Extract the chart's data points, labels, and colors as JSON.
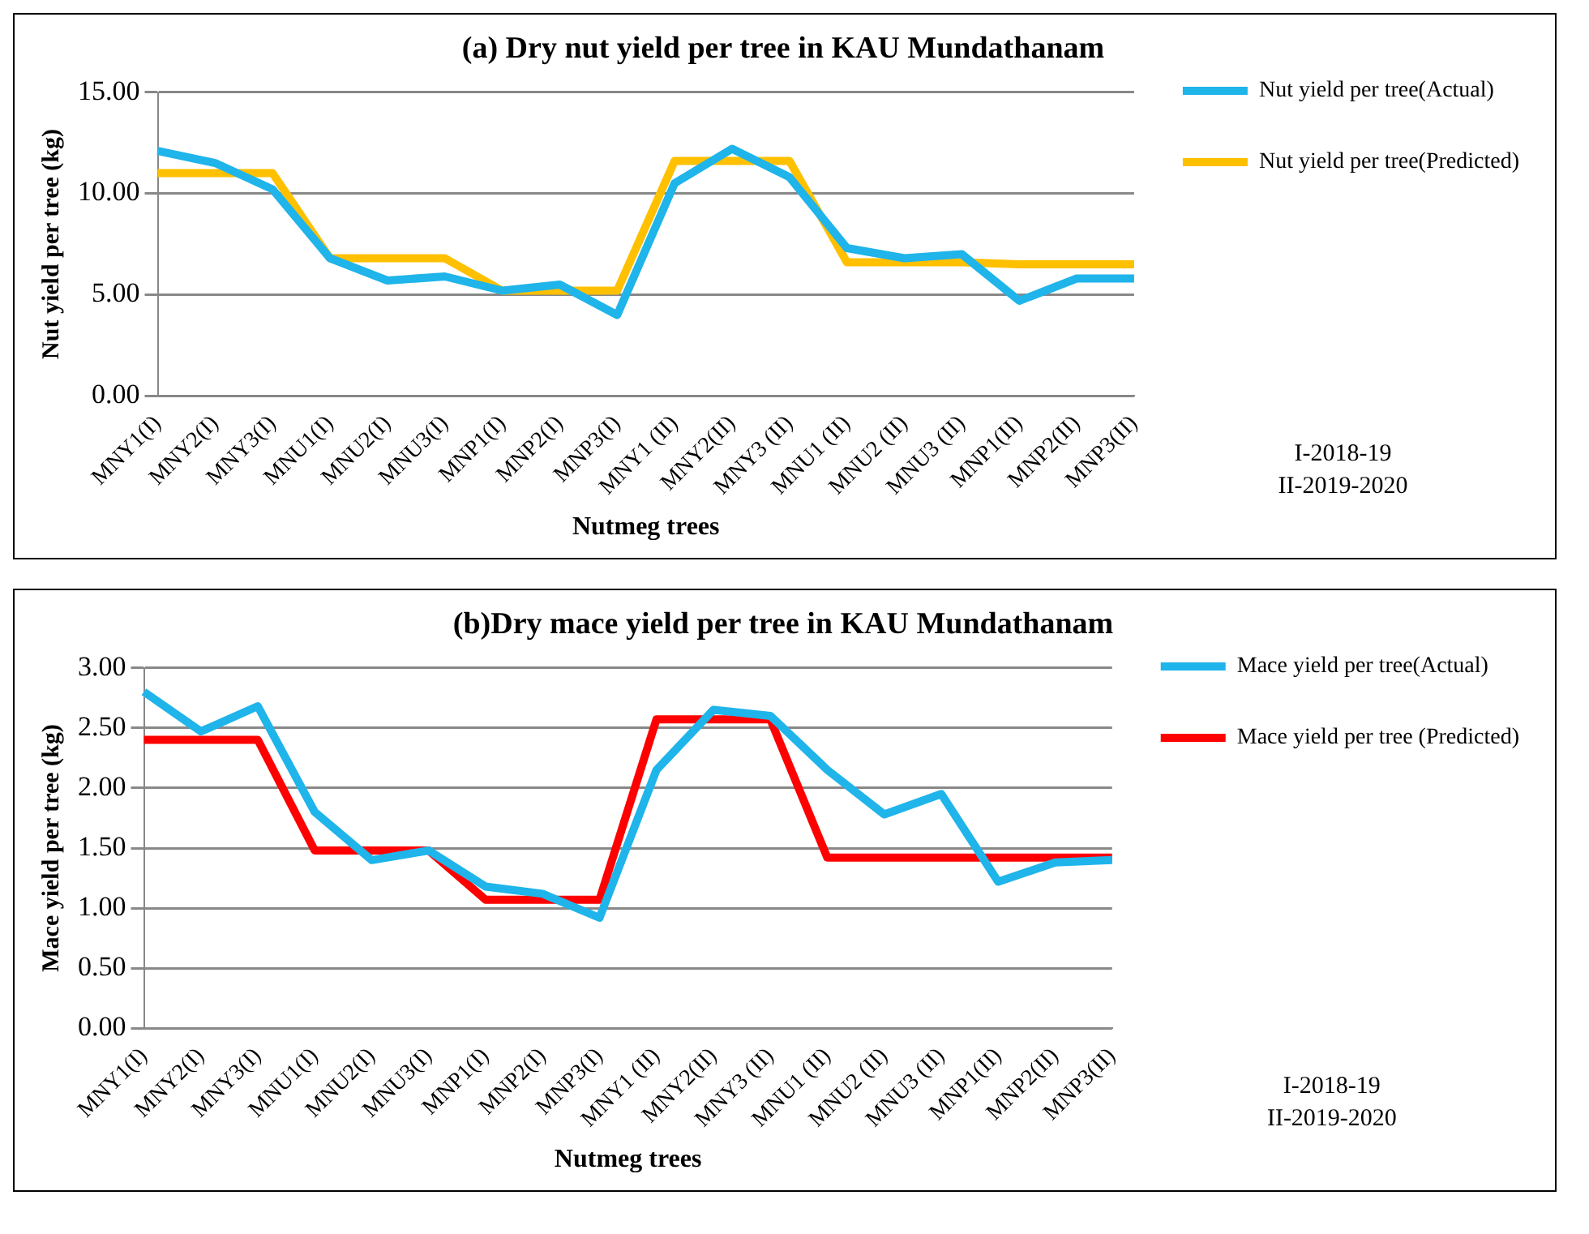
{
  "chart_data": [
    {
      "type": "line",
      "title": "(a) Dry nut yield per tree in KAU Mundathanam",
      "xlabel": "Nutmeg trees",
      "ylabel": "Nut yield per tree (kg)",
      "categories": [
        "MNY1(I)",
        "MNY2(I)",
        "MNY3(I)",
        "MNU1(I)",
        "MNU2(I)",
        "MNU3(I)",
        "MNP1(I)",
        "MNP2(I)",
        "MNP3(I)",
        "MNY1 (II)",
        "MNY2(II)",
        "MNY3 (II)",
        "MNU1 (II)",
        "MNU2 (II)",
        "MNU3 (II)",
        "MNP1(II)",
        "MNP2(II)",
        "MNP3(II)"
      ],
      "series": [
        {
          "name": "Nut yield per tree(Actual)",
          "color": "#1fb4ea",
          "values": [
            12.1,
            11.5,
            10.2,
            6.8,
            5.7,
            5.9,
            5.2,
            5.5,
            4.0,
            10.5,
            12.2,
            10.8,
            7.3,
            6.8,
            7.0,
            4.7,
            5.8,
            5.8
          ]
        },
        {
          "name": "Nut yield per tree(Predicted)",
          "color": "#ffc000",
          "values": [
            11.0,
            11.0,
            11.0,
            6.8,
            6.8,
            6.8,
            5.2,
            5.2,
            5.2,
            11.6,
            11.6,
            11.6,
            6.6,
            6.6,
            6.6,
            6.5,
            6.5,
            6.5
          ]
        }
      ],
      "ylim": [
        0,
        15
      ],
      "yticks": [
        {
          "value": 0,
          "label": "0.00"
        },
        {
          "value": 5,
          "label": "5.00"
        },
        {
          "value": 10,
          "label": "10.00"
        },
        {
          "value": 15,
          "label": "15.00"
        }
      ],
      "grid": "y",
      "legend": "right",
      "marker": "none",
      "annotations": [
        "I-2018-19",
        "II-2019-2020"
      ]
    },
    {
      "type": "line",
      "title": "(b)Dry mace yield per tree in KAU Mundathanam",
      "xlabel": "Nutmeg trees",
      "ylabel": "Mace yield per tree (kg)",
      "categories": [
        "MNY1(I)",
        "MNY2(I)",
        "MNY3(I)",
        "MNU1(I)",
        "MNU2(I)",
        "MNU3(I)",
        "MNP1(I)",
        "MNP2(I)",
        "MNP3(I)",
        "MNY1 (II)",
        "MNY2(II)",
        "MNY3 (II)",
        "MNU1 (II)",
        "MNU2 (II)",
        "MNU3 (II)",
        "MNP1(II)",
        "MNP2(II)",
        "MNP3(II)"
      ],
      "series": [
        {
          "name": "Mace yield per tree(Actual)",
          "color": "#1fb4ea",
          "values": [
            2.8,
            2.47,
            2.68,
            1.8,
            1.4,
            1.48,
            1.18,
            1.12,
            0.92,
            2.15,
            2.65,
            2.6,
            2.15,
            1.78,
            1.95,
            1.22,
            1.38,
            1.4
          ]
        },
        {
          "name": "Mace yield per tree (Predicted)",
          "color": "#ff0000",
          "values": [
            2.4,
            2.4,
            2.4,
            1.48,
            1.48,
            1.48,
            1.07,
            1.07,
            1.07,
            2.57,
            2.57,
            2.57,
            1.42,
            1.42,
            1.42,
            1.42,
            1.42,
            1.42
          ]
        }
      ],
      "ylim": [
        0,
        3
      ],
      "yticks": [
        {
          "value": 0,
          "label": "0.00"
        },
        {
          "value": 0.5,
          "label": "0.50"
        },
        {
          "value": 1,
          "label": "1.00"
        },
        {
          "value": 1.5,
          "label": "1.50"
        },
        {
          "value": 2,
          "label": "2.00"
        },
        {
          "value": 2.5,
          "label": "2.50"
        },
        {
          "value": 3,
          "label": "3.00"
        }
      ],
      "grid": "y",
      "legend": "right",
      "marker": "none",
      "annotations": [
        "I-2018-19",
        "II-2019-2020"
      ]
    }
  ]
}
